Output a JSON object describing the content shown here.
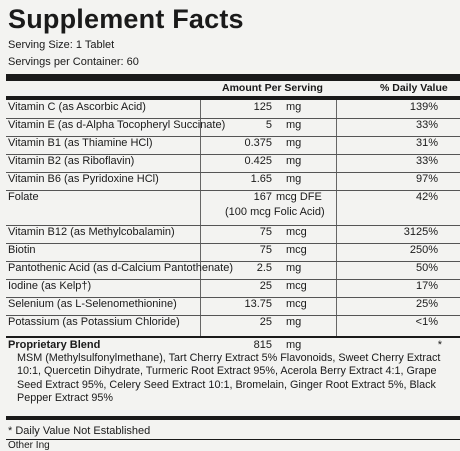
{
  "title": "Supplement Facts",
  "serving_size": "Serving Size: 1 Tablet",
  "servings_per_container": "Servings per Container: 60",
  "headers": {
    "amount": "Amount Per Serving",
    "dv": "% Daily Value"
  },
  "rows": [
    {
      "name": "Vitamin C (as Ascorbic Acid)",
      "amount": "125",
      "unit": "mg",
      "dv": "139%"
    },
    {
      "name": "Vitamin E (as d-Alpha Tocopheryl Succinate)",
      "amount": "5",
      "unit": "mg",
      "dv": "33%"
    },
    {
      "name": "Vitamin B1 (as Thiamine HCl)",
      "amount": "0.375",
      "unit": "mg",
      "dv": "31%"
    },
    {
      "name": "Vitamin B2 (as Riboflavin)",
      "amount": "0.425",
      "unit": "mg",
      "dv": "33%"
    },
    {
      "name": "Vitamin B6 (as Pyridoxine HCl)",
      "amount": "1.65",
      "unit": "mg",
      "dv": "97%"
    },
    {
      "name": "Folate",
      "amount": "167",
      "unit": "mcg DFE",
      "sub": "(100 mcg Folic Acid)",
      "dv": "42%"
    },
    {
      "name": "Vitamin B12 (as Methylcobalamin)",
      "amount": "75",
      "unit": "mcg",
      "dv": "3125%"
    },
    {
      "name": "Biotin",
      "amount": "75",
      "unit": "mcg",
      "dv": "250%"
    },
    {
      "name": "Pantothenic Acid (as d-Calcium Pantothenate)",
      "amount": "2.5",
      "unit": "mg",
      "dv": "50%"
    },
    {
      "name": "Iodine (as Kelp†)",
      "amount": "25",
      "unit": "mcg",
      "dv": "17%"
    },
    {
      "name": "Selenium (as L-Selenomethionine)",
      "amount": "13.75",
      "unit": "mcg",
      "dv": "25%"
    },
    {
      "name": "Potassium (as Potassium Chloride)",
      "amount": "25",
      "unit": "mg",
      "dv": "<1%"
    }
  ],
  "blend": {
    "name": "Proprietary Blend",
    "amount": "815",
    "unit": "mg",
    "dv": "*",
    "ingredients": "MSM (Methylsulfonylmethane), Tart Cherry Extract 5% Flavonoids, Sweet Cherry Extract 10:1, Quercetin Dihydrate, Turmeric Root Extract 95%, Acerola Berry Extract 4:1, Grape Seed Extract 95%, Celery Seed Extract 10:1, Bromelain, Ginger Root Extract 5%, Black Pepper Extract 95%"
  },
  "footnote": "* Daily Value Not Established",
  "other_partial": "Other Ing"
}
